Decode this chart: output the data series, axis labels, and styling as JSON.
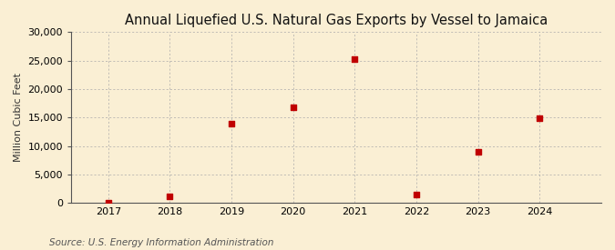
{
  "title": "Annual Liquefied U.S. Natural Gas Exports by Vessel to Jamaica",
  "ylabel": "Million Cubic Feet",
  "source": "Source: U.S. Energy Information Administration",
  "years": [
    2017,
    2018,
    2019,
    2020,
    2021,
    2022,
    2023,
    2024
  ],
  "values": [
    0,
    1200,
    13900,
    16800,
    25300,
    1400,
    9000,
    14900
  ],
  "ylim": [
    0,
    30000
  ],
  "yticks": [
    0,
    5000,
    10000,
    15000,
    20000,
    25000,
    30000
  ],
  "ytick_labels": [
    "0",
    "5,000",
    "10,000",
    "15,000",
    "20,000",
    "25,000",
    "30,000"
  ],
  "marker_color": "#c00000",
  "marker_size": 16,
  "background_color": "#faefd4",
  "grid_color": "#aaaaaa",
  "spine_color": "#555555",
  "title_fontsize": 10.5,
  "label_fontsize": 8,
  "tick_fontsize": 8,
  "source_fontsize": 7.5,
  "xlim_left": 2016.4,
  "xlim_right": 2025.0
}
